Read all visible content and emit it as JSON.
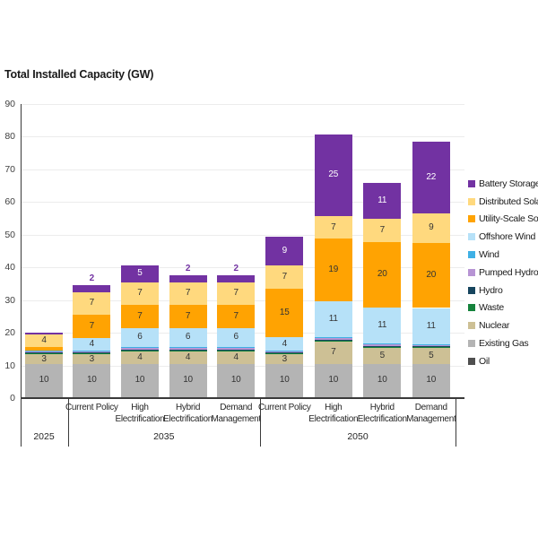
{
  "title": "Total Installed Capacity (GW)",
  "chart_data": {
    "type": "bar",
    "subtype": "stacked",
    "title": "Total Installed Capacity (GW)",
    "ylabel": "Total Installed Capacity (GW)",
    "ylim": [
      0,
      90
    ],
    "yticks": [
      0,
      10,
      20,
      30,
      40,
      50,
      60,
      70,
      80,
      90
    ],
    "grid": true,
    "legend_position": "right",
    "stack_order_bottom_to_top": [
      "Oil",
      "Existing Gas",
      "Nuclear",
      "Waste",
      "Hydro",
      "Pumped Hydro",
      "Wind",
      "Offshore Wind",
      "Utility-Scale Solar",
      "Distributed Solar",
      "Battery Storage"
    ],
    "legend": [
      {
        "label": "Battery Storage",
        "color": "#7232A2"
      },
      {
        "label": "Distributed Solar",
        "color": "#FFD97E"
      },
      {
        "label": "Utility-Scale Solar",
        "color": "#FFA302"
      },
      {
        "label": "Offshore Wind",
        "color": "#B6E1F8"
      },
      {
        "label": "Wind",
        "color": "#3FB0E5"
      },
      {
        "label": "Pumped Hydro",
        "color": "#B794D4"
      },
      {
        "label": "Hydro",
        "color": "#16455E"
      },
      {
        "label": "Waste",
        "color": "#15833C"
      },
      {
        "label": "Nuclear",
        "color": "#CDC095"
      },
      {
        "label": "Existing Gas",
        "color": "#B4B4B4"
      },
      {
        "label": "Oil",
        "color": "#4F4F4F"
      }
    ],
    "colors": {
      "Oil": "#4F4F4F",
      "Existing Gas": "#B4B4B4",
      "Nuclear": "#CDC095",
      "Waste": "#15833C",
      "Hydro": "#16455E",
      "Pumped Hydro": "#B794D4",
      "Wind": "#3FB0E5",
      "Offshore Wind": "#B6E1F8",
      "Utility-Scale Solar": "#FFA302",
      "Distributed Solar": "#FFD97E",
      "Battery Storage": "#7232A2"
    },
    "groups": [
      {
        "year": "2025",
        "scenarios": [
          [
            ""
          ]
        ]
      },
      {
        "year": "2035",
        "scenarios": [
          [
            "Current Policy"
          ],
          [
            "High",
            "Electrification"
          ],
          [
            "Hybrid",
            "Electrification"
          ],
          [
            "Demand",
            "Management"
          ]
        ]
      },
      {
        "year": "2050",
        "scenarios": [
          [
            "Current Policy"
          ],
          [
            "High",
            "Electrification"
          ],
          [
            "Hybrid",
            "Electrification"
          ],
          [
            "Demand",
            "Management"
          ]
        ]
      }
    ],
    "bars": [
      {
        "year": "2025",
        "scenario": "",
        "values": [
          0.4,
          10,
          3,
          0.2,
          0.2,
          0.2,
          0.3,
          0,
          1,
          4,
          0.4
        ]
      },
      {
        "year": "2035",
        "scenario": "Current Policy",
        "values": [
          0.4,
          10,
          3,
          0.2,
          0.2,
          0.2,
          0.2,
          4,
          7,
          7,
          2
        ]
      },
      {
        "year": "2035",
        "scenario": "High Electrification",
        "values": [
          0.4,
          10,
          4,
          0.2,
          0.2,
          0.3,
          0.2,
          6,
          7,
          7,
          5
        ]
      },
      {
        "year": "2035",
        "scenario": "Hybrid Electrification",
        "values": [
          0.4,
          10,
          4,
          0.2,
          0.2,
          0.3,
          0.2,
          6,
          7,
          7,
          2
        ]
      },
      {
        "year": "2035",
        "scenario": "Demand Management",
        "values": [
          0.4,
          10,
          4,
          0.2,
          0.2,
          0.3,
          0.2,
          6,
          7,
          7,
          2
        ]
      },
      {
        "year": "2050",
        "scenario": "Current Policy",
        "values": [
          0.4,
          10,
          3,
          0.2,
          0.2,
          0.2,
          0.3,
          4,
          15,
          7,
          9
        ]
      },
      {
        "year": "2050",
        "scenario": "High Electrification",
        "values": [
          0.4,
          10,
          7,
          0.2,
          0.2,
          0.5,
          0.3,
          11,
          19,
          7,
          25
        ]
      },
      {
        "year": "2050",
        "scenario": "Hybrid Electrification",
        "values": [
          0.4,
          10,
          5,
          0.2,
          0.2,
          0.5,
          0.3,
          11,
          20,
          7,
          11
        ]
      },
      {
        "year": "2050",
        "scenario": "Demand Management",
        "values": [
          0.4,
          10,
          5,
          0.3,
          0.2,
          0.3,
          0.3,
          11,
          20,
          9,
          22
        ]
      }
    ],
    "value_label_min": 3,
    "above_label_series": "Battery Storage",
    "above_label_color": "#7232A2"
  }
}
